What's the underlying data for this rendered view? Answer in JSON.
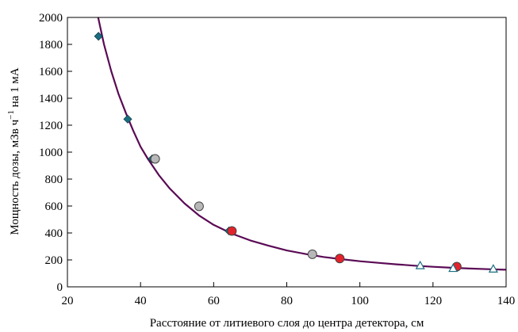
{
  "chart_data": {
    "type": "scatter",
    "title": "",
    "xlabel": "Расстояние от литиевого слоя до центра детектора, см",
    "ylabel": "Мощность дозы, мЗв ч",
    "ylabel_sup": "−1",
    "ylabel_tail": " на 1 мА",
    "xlim": [
      20,
      140
    ],
    "ylim": [
      0,
      2000
    ],
    "xticks": [
      20,
      40,
      60,
      80,
      100,
      120,
      140
    ],
    "yticks": [
      0,
      200,
      400,
      600,
      800,
      1000,
      1200,
      1400,
      1600,
      1800,
      2000
    ],
    "grid": false,
    "legend": "none",
    "curve": {
      "color": "#5a0a55",
      "points": [
        [
          28,
          2050
        ],
        [
          30,
          1800
        ],
        [
          32,
          1600
        ],
        [
          34,
          1430
        ],
        [
          36,
          1290
        ],
        [
          38,
          1160
        ],
        [
          40,
          1040
        ],
        [
          42,
          950
        ],
        [
          45,
          830
        ],
        [
          48,
          730
        ],
        [
          52,
          620
        ],
        [
          56,
          530
        ],
        [
          60,
          460
        ],
        [
          65,
          395
        ],
        [
          70,
          345
        ],
        [
          75,
          305
        ],
        [
          80,
          270
        ],
        [
          85,
          245
        ],
        [
          90,
          222
        ],
        [
          95,
          205
        ],
        [
          100,
          190
        ],
        [
          105,
          178
        ],
        [
          110,
          167
        ],
        [
          115,
          157
        ],
        [
          120,
          149
        ],
        [
          125,
          142
        ],
        [
          130,
          136
        ],
        [
          135,
          131
        ],
        [
          140,
          127
        ]
      ]
    },
    "series": [
      {
        "marker": "diamond",
        "color": "#1a6e80",
        "points": [
          [
            28.5,
            1860
          ],
          [
            36.5,
            1245
          ],
          [
            43.2,
            950
          ],
          [
            64.2,
            415
          ]
        ]
      },
      {
        "marker": "circle",
        "color": "#b8b8b8",
        "points": [
          [
            44,
            950
          ],
          [
            56,
            598
          ],
          [
            87,
            242
          ]
        ]
      },
      {
        "marker": "circle",
        "color": "#e5222b",
        "points": [
          [
            65,
            415
          ],
          [
            94.5,
            210
          ],
          [
            126.5,
            150
          ]
        ]
      },
      {
        "marker": "triangle",
        "color": "#ffffff",
        "stroke": "#1a6e80",
        "points": [
          [
            116.5,
            158
          ],
          [
            125.5,
            138
          ],
          [
            136.5,
            133
          ]
        ]
      }
    ]
  }
}
